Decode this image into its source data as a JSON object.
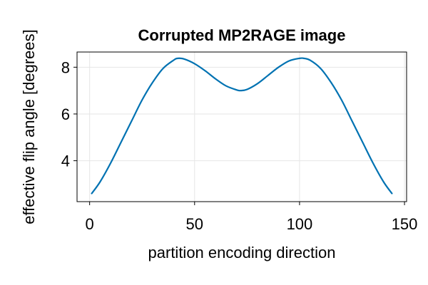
{
  "chart_data": {
    "type": "line",
    "title": "Corrupted MP2RAGE image",
    "xlabel": "partition encoding direction",
    "ylabel": "effective flip angle [degrees]",
    "xlim": [
      -6,
      151
    ],
    "ylim": [
      2.25,
      8.65
    ],
    "xticks": [
      0,
      50,
      100,
      150
    ],
    "xtick_labels": [
      "0",
      "50",
      "100",
      "150"
    ],
    "yticks": [
      4,
      6,
      8
    ],
    "ytick_labels": [
      "4",
      "6",
      "8"
    ],
    "grid": true,
    "series": [
      {
        "color": "#0072b2",
        "x": [
          1,
          5,
          10,
          15,
          20,
          25,
          30,
          35,
          40,
          42,
          45,
          50,
          55,
          60,
          65,
          70,
          72,
          75,
          80,
          85,
          90,
          95,
          100,
          102,
          105,
          110,
          115,
          120,
          125,
          130,
          135,
          140,
          144
        ],
        "y": [
          2.6,
          3.1,
          3.9,
          4.8,
          5.7,
          6.6,
          7.35,
          7.95,
          8.3,
          8.38,
          8.35,
          8.15,
          7.85,
          7.5,
          7.2,
          7.03,
          7.0,
          7.05,
          7.3,
          7.65,
          8.0,
          8.27,
          8.38,
          8.38,
          8.3,
          7.95,
          7.35,
          6.6,
          5.7,
          4.8,
          3.9,
          3.1,
          2.6
        ]
      }
    ]
  }
}
